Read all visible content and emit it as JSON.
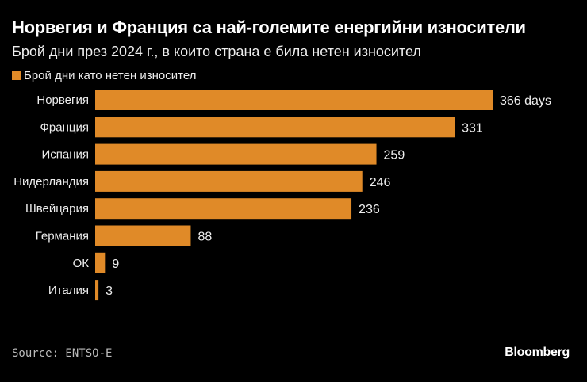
{
  "title": "Норвегия и Франция са най-големите енергийни износители",
  "subtitle": "Брой дни през 2024 г., в които страна е била нетен износител",
  "source": "Source: ENTSO-E",
  "logo": "Bloomberg",
  "chart_data": {
    "type": "bar",
    "orientation": "horizontal",
    "categories": [
      "Норвегия",
      "Франция",
      "Испания",
      "Нидерландия",
      "Швейцария",
      "Германия",
      "ОК",
      "Италия"
    ],
    "series": [
      {
        "name": "Брой дни като нетен износител",
        "values": [
          366,
          331,
          259,
          246,
          236,
          88,
          9,
          3
        ],
        "color": "#e08a28"
      }
    ],
    "data_labels": [
      "366 days",
      "331",
      "259",
      "246",
      "236",
      "88",
      "9",
      "3"
    ],
    "legend": "top-left",
    "grid": false
  }
}
